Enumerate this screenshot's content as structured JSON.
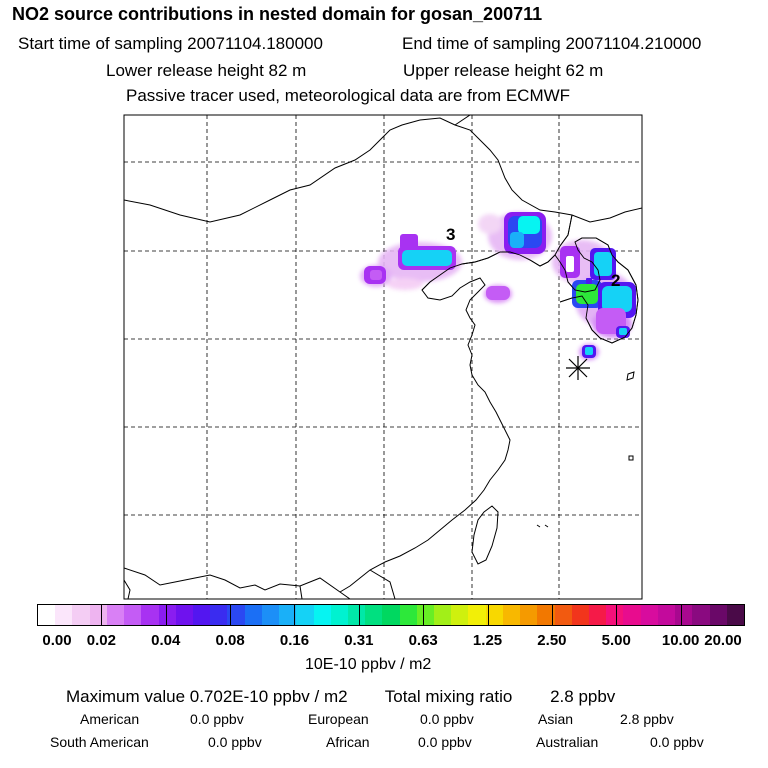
{
  "header": {
    "title": "NO2 source contributions in nested domain for gosan_200711",
    "start_label": "Start time of sampling 20071104.180000",
    "end_label": "End time of sampling 20071104.210000",
    "lower_label": "Lower release height   82 m",
    "upper_label": "Upper release height   62 m",
    "tracer_label": "Passive tracer used, meteorological data are from ECMWF"
  },
  "map": {
    "source_labels": [
      "3",
      "2"
    ],
    "receptor_marker": "asterisk-marker"
  },
  "colorbar": {
    "ticks": [
      "0.00",
      "0.02",
      "0.04",
      "0.08",
      "0.16",
      "0.31",
      "0.63",
      "1.25",
      "2.50",
      "5.00",
      "10.00",
      "20.00"
    ],
    "unit": "10E-10 ppbv / m2",
    "colors": [
      "#ffffff",
      "#fbe6fb",
      "#f4cdf4",
      "#eeb4f0",
      "#d980f5",
      "#c45cf5",
      "#a832f2",
      "#8a1df0",
      "#6f12ee",
      "#5316f0",
      "#3a2cf0",
      "#2b48f2",
      "#1b6ff5",
      "#1c8ff7",
      "#1ab0f8",
      "#15d2f6",
      "#06f4f2",
      "#00f2d0",
      "#00e8a8",
      "#00e080",
      "#00d860",
      "#2de83a",
      "#68ee25",
      "#a2ef18",
      "#cff00e",
      "#f2ef07",
      "#f8d800",
      "#f8b800",
      "#f59a00",
      "#f27800",
      "#f25a10",
      "#f2351c",
      "#f51a48",
      "#f5107a",
      "#e80c8e",
      "#d80c9e",
      "#c30a9c",
      "#a8088f",
      "#8a0a80",
      "#6a0868",
      "#4a0a48"
    ]
  },
  "stats": {
    "maximum": "Maximum value  0.702E-10 ppbv / m2",
    "total": "Total mixing ratio        2.8 ppbv"
  },
  "regions": {
    "american": "American",
    "american_value": "0.0 ppbv",
    "european": "European",
    "european_value": "0.0 ppbv",
    "asian": "Asian",
    "asian_value": "2.8 ppbv",
    "south_american": "South American",
    "south_american_value": "0.0 ppbv",
    "african": "African",
    "african_value": "0.0 ppbv",
    "australian": "Australian",
    "australian_value": "0.0 ppbv"
  }
}
